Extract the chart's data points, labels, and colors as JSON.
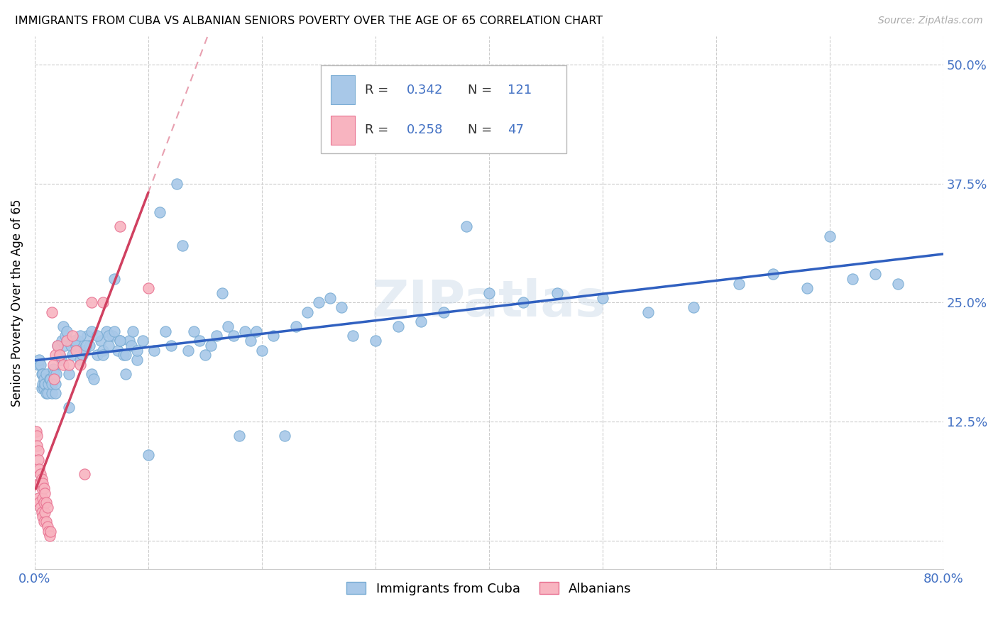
{
  "title": "IMMIGRANTS FROM CUBA VS ALBANIAN SENIORS POVERTY OVER THE AGE OF 65 CORRELATION CHART",
  "source": "Source: ZipAtlas.com",
  "ylabel": "Seniors Poverty Over the Age of 65",
  "xlim": [
    0.0,
    0.8
  ],
  "ylim": [
    -0.03,
    0.53
  ],
  "ytick_positions": [
    0.0,
    0.125,
    0.25,
    0.375,
    0.5
  ],
  "yticklabels": [
    "",
    "12.5%",
    "25.0%",
    "37.5%",
    "50.0%"
  ],
  "cuba_color": "#a8c8e8",
  "cuba_edge_color": "#7aadd4",
  "albanian_color": "#f8b4c0",
  "albanian_edge_color": "#e87090",
  "trend_cuba_color": "#3060c0",
  "trend_albanian_solid_color": "#d04060",
  "trend_albanian_dash_color": "#e8a0b0",
  "R_cuba": "0.342",
  "N_cuba": "121",
  "R_albanian": "0.258",
  "N_albanian": "47",
  "legend_labels": [
    "Immigrants from Cuba",
    "Albanians"
  ],
  "cuba_x": [
    0.003,
    0.004,
    0.005,
    0.006,
    0.006,
    0.007,
    0.007,
    0.008,
    0.008,
    0.009,
    0.009,
    0.01,
    0.01,
    0.011,
    0.012,
    0.013,
    0.014,
    0.015,
    0.015,
    0.016,
    0.017,
    0.018,
    0.018,
    0.019,
    0.02,
    0.021,
    0.022,
    0.023,
    0.024,
    0.025,
    0.026,
    0.027,
    0.028,
    0.03,
    0.032,
    0.033,
    0.035,
    0.036,
    0.038,
    0.04,
    0.042,
    0.044,
    0.046,
    0.048,
    0.05,
    0.052,
    0.055,
    0.058,
    0.06,
    0.063,
    0.065,
    0.068,
    0.07,
    0.073,
    0.075,
    0.078,
    0.08,
    0.083,
    0.086,
    0.09,
    0.095,
    0.1,
    0.105,
    0.11,
    0.115,
    0.12,
    0.125,
    0.13,
    0.135,
    0.14,
    0.145,
    0.15,
    0.155,
    0.16,
    0.165,
    0.17,
    0.175,
    0.18,
    0.185,
    0.19,
    0.195,
    0.2,
    0.21,
    0.22,
    0.23,
    0.24,
    0.25,
    0.26,
    0.27,
    0.28,
    0.3,
    0.32,
    0.34,
    0.36,
    0.38,
    0.4,
    0.43,
    0.46,
    0.5,
    0.54,
    0.58,
    0.62,
    0.65,
    0.68,
    0.7,
    0.72,
    0.74,
    0.76,
    0.03,
    0.035,
    0.04,
    0.045,
    0.05,
    0.055,
    0.06,
    0.065,
    0.07,
    0.075,
    0.08,
    0.085,
    0.09
  ],
  "cuba_y": [
    0.185,
    0.19,
    0.185,
    0.175,
    0.16,
    0.175,
    0.165,
    0.16,
    0.17,
    0.165,
    0.165,
    0.155,
    0.175,
    0.155,
    0.165,
    0.17,
    0.17,
    0.155,
    0.165,
    0.18,
    0.175,
    0.155,
    0.165,
    0.175,
    0.205,
    0.195,
    0.195,
    0.19,
    0.21,
    0.225,
    0.205,
    0.215,
    0.22,
    0.14,
    0.205,
    0.195,
    0.21,
    0.205,
    0.21,
    0.19,
    0.195,
    0.2,
    0.215,
    0.205,
    0.175,
    0.17,
    0.195,
    0.21,
    0.2,
    0.22,
    0.205,
    0.215,
    0.275,
    0.2,
    0.21,
    0.195,
    0.175,
    0.21,
    0.22,
    0.19,
    0.21,
    0.09,
    0.2,
    0.345,
    0.22,
    0.205,
    0.375,
    0.31,
    0.2,
    0.22,
    0.21,
    0.195,
    0.205,
    0.215,
    0.26,
    0.225,
    0.215,
    0.11,
    0.22,
    0.21,
    0.22,
    0.2,
    0.215,
    0.11,
    0.225,
    0.24,
    0.25,
    0.255,
    0.245,
    0.215,
    0.21,
    0.225,
    0.23,
    0.24,
    0.33,
    0.26,
    0.25,
    0.26,
    0.255,
    0.24,
    0.245,
    0.27,
    0.28,
    0.265,
    0.32,
    0.275,
    0.28,
    0.27,
    0.175,
    0.21,
    0.215,
    0.205,
    0.22,
    0.215,
    0.195,
    0.215,
    0.22,
    0.21,
    0.195,
    0.205,
    0.2
  ],
  "albanian_x": [
    0.001,
    0.002,
    0.002,
    0.003,
    0.003,
    0.003,
    0.004,
    0.004,
    0.004,
    0.005,
    0.005,
    0.005,
    0.006,
    0.006,
    0.006,
    0.007,
    0.007,
    0.007,
    0.008,
    0.008,
    0.008,
    0.009,
    0.009,
    0.01,
    0.01,
    0.011,
    0.011,
    0.012,
    0.013,
    0.014,
    0.015,
    0.016,
    0.017,
    0.018,
    0.02,
    0.022,
    0.025,
    0.028,
    0.03,
    0.033,
    0.036,
    0.04,
    0.044,
    0.05,
    0.06,
    0.075,
    0.1
  ],
  "albanian_y": [
    0.115,
    0.11,
    0.1,
    0.095,
    0.085,
    0.045,
    0.075,
    0.06,
    0.04,
    0.07,
    0.06,
    0.035,
    0.065,
    0.055,
    0.03,
    0.06,
    0.045,
    0.025,
    0.055,
    0.04,
    0.02,
    0.05,
    0.03,
    0.04,
    0.02,
    0.035,
    0.015,
    0.01,
    0.005,
    0.01,
    0.24,
    0.185,
    0.17,
    0.195,
    0.205,
    0.195,
    0.185,
    0.21,
    0.185,
    0.215,
    0.2,
    0.185,
    0.07,
    0.25,
    0.25,
    0.33,
    0.265
  ]
}
